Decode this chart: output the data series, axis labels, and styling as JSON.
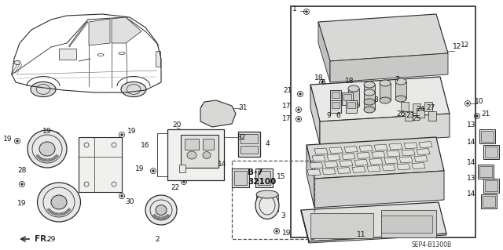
{
  "fig_width": 6.4,
  "fig_height": 3.19,
  "dpi": 100,
  "bg_color": "#ffffff",
  "line_color": "#2a2a2a",
  "diagram_code": "SEP4-B1300B",
  "part_ref": "B-7\n32100"
}
